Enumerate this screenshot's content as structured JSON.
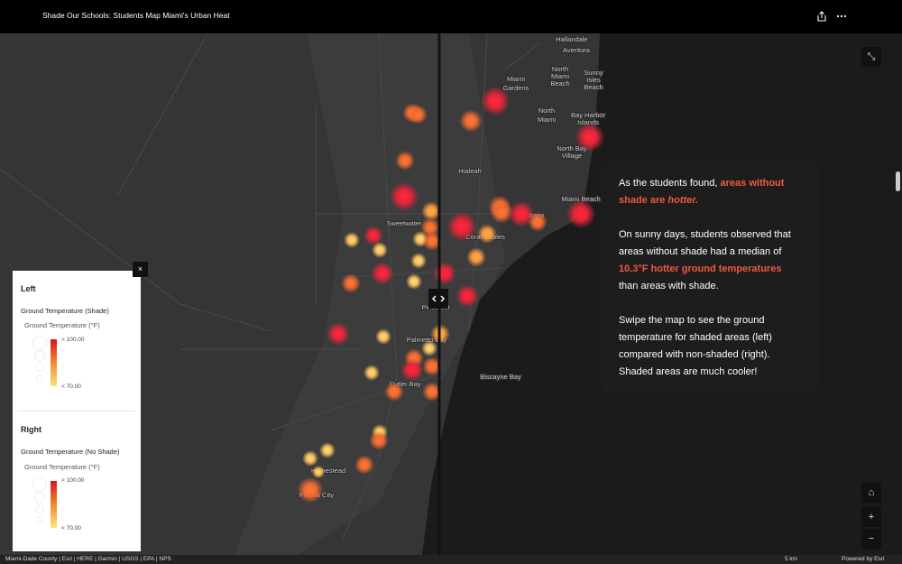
{
  "header": {
    "title": "Shade Our Schools: Students Map Miami's Urban Heat"
  },
  "map_labels": [
    {
      "lines": [
        "Hallandale"
      ]
    },
    {
      "lines": [
        "Aventura"
      ]
    },
    {
      "lines": [
        "Miami",
        "Gardens"
      ]
    },
    {
      "lines": [
        "North",
        "Miami",
        "Beach"
      ]
    },
    {
      "lines": [
        "Sunny",
        "Isles",
        "Beach"
      ]
    },
    {
      "lines": [
        "North",
        "Miami"
      ]
    },
    {
      "lines": [
        "Bay Harbor",
        "Islands"
      ]
    },
    {
      "lines": [
        "North Bay",
        "Village"
      ]
    },
    {
      "lines": [
        "Miami Beach"
      ]
    },
    {
      "lines": [
        "Hialeah"
      ]
    },
    {
      "lines": [
        "Miami"
      ]
    },
    {
      "lines": [
        "Sweetwater"
      ]
    },
    {
      "lines": [
        "Coral Gables"
      ]
    },
    {
      "lines": [
        "Pinecrest"
      ]
    },
    {
      "lines": [
        "Palmetto Bay"
      ]
    },
    {
      "lines": [
        "Biscayne Bay"
      ]
    },
    {
      "lines": [
        "Cutler Bay"
      ]
    },
    {
      "lines": [
        "Homestead"
      ]
    },
    {
      "lines": [
        "Florida City"
      ]
    }
  ],
  "legend": {
    "left": {
      "heading": "Left",
      "layer": "Ground Temperature (Shade)",
      "field": "Ground Temperature (°F)",
      "high": "> 100.00",
      "low": "< 70.00"
    },
    "right": {
      "heading": "Right",
      "layer": "Ground Temperature (No Shade)",
      "field": "Ground Temperature (°F)",
      "high": "> 100.00",
      "low": "< 70.00"
    }
  },
  "story": {
    "p1": [
      "As the students found, ",
      "areas without shade are ",
      "hotter."
    ],
    "p2": [
      "On sunny days, students observed that areas without shade had a median of ",
      "10.3°F hotter ground temperatures",
      " than areas with shade."
    ],
    "p3": "Swipe the map to see the ground temperature for shaded areas (left) compared with non-shaded (right). Shaded areas are much cooler!"
  },
  "footer": {
    "attribution": "Miami-Dade County | Esri | HERE | Garmin | USGS | EPA | NPS",
    "scale": "5 km",
    "powered": "Powered by Esri"
  }
}
